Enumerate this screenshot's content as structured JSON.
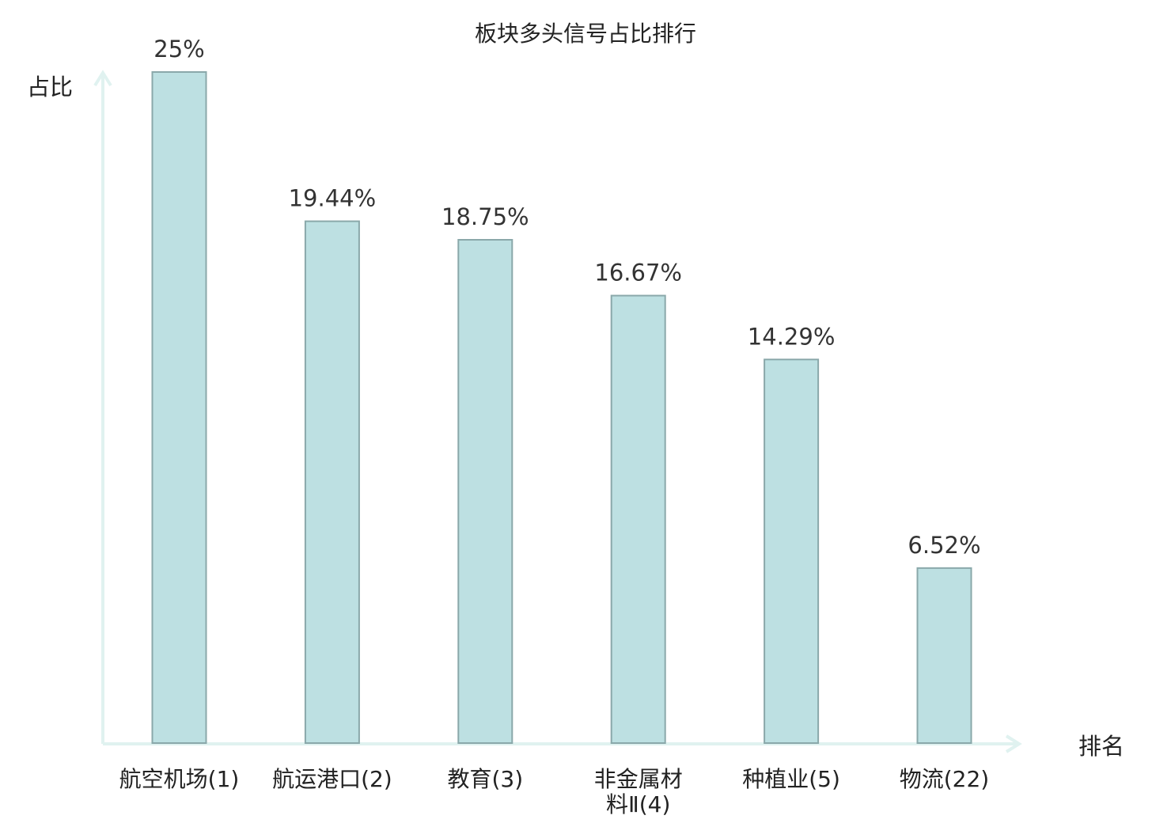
{
  "chart_data": {
    "type": "bar",
    "title": "板块多头信号占比排行",
    "ylabel": "占比",
    "xlabel": "排名",
    "categories": [
      "航空机场(1)",
      "航运港口(2)",
      "教育(3)",
      "非金属材料Ⅱ(4)",
      "种植业(5)",
      "物流(22)"
    ],
    "category_lines": [
      [
        "航空机场(1)"
      ],
      [
        "航运港口(2)"
      ],
      [
        "教育(3)"
      ],
      [
        "非金属材",
        "料Ⅱ(4)"
      ],
      [
        "种植业(5)"
      ],
      [
        "物流(22)"
      ]
    ],
    "values": [
      25,
      19.44,
      18.75,
      16.67,
      14.29,
      6.52
    ],
    "value_labels": [
      "25%",
      "19.44%",
      "18.75%",
      "16.67%",
      "14.29%",
      "6.52%"
    ],
    "highlight_index": 5,
    "ylim": [
      0,
      25
    ],
    "grid": false,
    "colors": {
      "bar_fill": "#bde0e2",
      "bar_stroke": "#8aa8aa",
      "axis": "#e0f2f0",
      "text": "#222222",
      "highlight_text": "#e60012"
    }
  }
}
